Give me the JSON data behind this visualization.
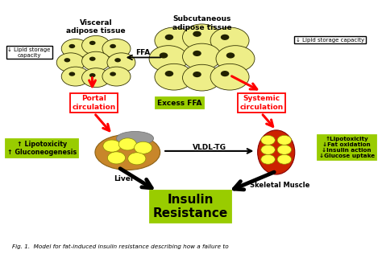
{
  "bg_color": "#ffffff",
  "title_text": "Fig. 1.  Model for fat-induced insulin resistance describing how a failure to",
  "visceral_label": "Visceral\nadipose tissue",
  "subcutaneous_label": "Subcutaneous\nadipose tissue",
  "ffa_arrow_label": "FFA",
  "lipid_storage_left": "↓ Lipid storage\ncapacity",
  "lipid_storage_right": "↓ Lipid storage capacity",
  "portal_label": "Portal\ncirculation",
  "excess_ffa_label": "Excess FFA",
  "systemic_label": "Systemic\ncirculation",
  "liver_label": "Liver",
  "skeletal_label": "Skeletal Muscle",
  "vldl_label": "VLDL-TG",
  "lipotox_left": "↑ Lipotoxicity\n↑ Gluconeogenesis",
  "lipotox_right": "↑Lipotoxicity\n↓Fat oxidation\n↓Insulin action\n↓Glucose uptake",
  "insulin_resistance": "Insulin\nResistance",
  "green_box_color": "#99cc00",
  "red_box_color": "#ff0000",
  "black_box_color": "#000000",
  "arrow_red": "#ff0000",
  "arrow_black": "#000000",
  "fat_cell_color": "#eeee88",
  "fat_cell_border": "#333300",
  "liver_color": "#c8862a",
  "liver_cap_color": "#aaaaaa",
  "muscle_color": "#cc2200"
}
